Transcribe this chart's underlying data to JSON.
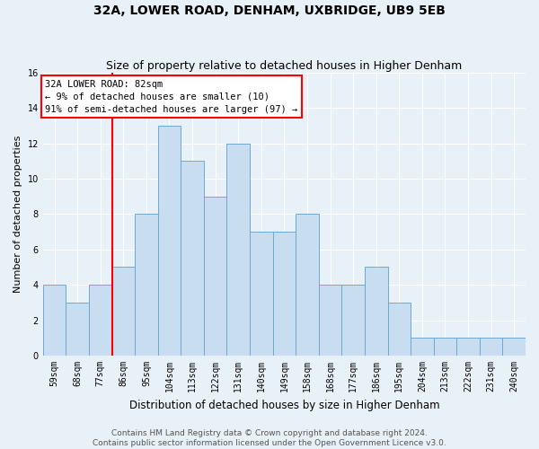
{
  "title": "32A, LOWER ROAD, DENHAM, UXBRIDGE, UB9 5EB",
  "subtitle": "Size of property relative to detached houses in Higher Denham",
  "xlabel": "Distribution of detached houses by size in Higher Denham",
  "ylabel": "Number of detached properties",
  "footer_line1": "Contains HM Land Registry data © Crown copyright and database right 2024.",
  "footer_line2": "Contains public sector information licensed under the Open Government Licence v3.0.",
  "bin_labels": [
    "59sqm",
    "68sqm",
    "77sqm",
    "86sqm",
    "95sqm",
    "104sqm",
    "113sqm",
    "122sqm",
    "131sqm",
    "140sqm",
    "149sqm",
    "158sqm",
    "168sqm",
    "177sqm",
    "186sqm",
    "195sqm",
    "204sqm",
    "213sqm",
    "222sqm",
    "231sqm",
    "240sqm"
  ],
  "bar_values": [
    4,
    3,
    4,
    5,
    8,
    13,
    11,
    9,
    12,
    7,
    7,
    8,
    4,
    4,
    5,
    3,
    1,
    1,
    1,
    1,
    1
  ],
  "bar_color": "#c9ddf0",
  "bar_edge_color": "#6aaad4",
  "red_line_index": 2,
  "annotation_text": "32A LOWER ROAD: 82sqm\n← 9% of detached houses are smaller (10)\n91% of semi-detached houses are larger (97) →",
  "annotation_box_color": "white",
  "annotation_box_edge": "red",
  "ylim": [
    0,
    16
  ],
  "yticks": [
    0,
    2,
    4,
    6,
    8,
    10,
    12,
    14,
    16
  ],
  "background_color": "#e8f0f8",
  "grid_color": "white",
  "title_fontsize": 10,
  "subtitle_fontsize": 9,
  "ylabel_fontsize": 8,
  "xlabel_fontsize": 8.5,
  "tick_fontsize": 7,
  "annotation_fontsize": 7.5,
  "footer_fontsize": 6.5
}
